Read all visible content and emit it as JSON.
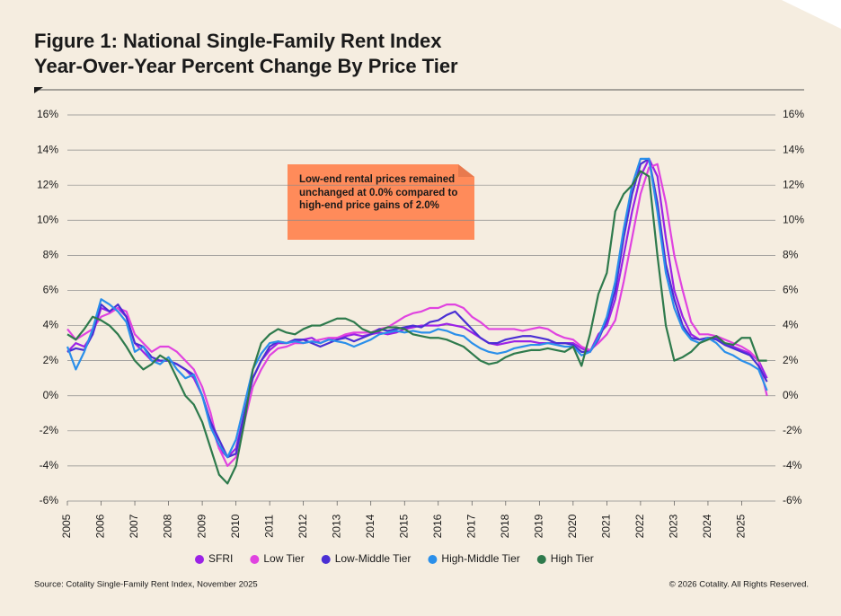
{
  "chart_data": {
    "type": "line",
    "title": "Figure 1: National Single-Family Rent Index",
    "subtitle": "Year-Over-Year Percent Change By Price Tier",
    "annotation": "Low-end rental prices remained unchanged at 0.0% compared to high-end price gains of 2.0%",
    "source": "Source: Cotality Single-Family Rent Index, November 2025",
    "copyright": "© 2026 Cotality. All Rights Reserved.",
    "xlim": [
      2005,
      2026
    ],
    "xticks": [
      2005,
      2006,
      2007,
      2008,
      2009,
      2010,
      2011,
      2012,
      2013,
      2014,
      2015,
      2016,
      2017,
      2018,
      2019,
      2020,
      2021,
      2022,
      2023,
      2024,
      2025
    ],
    "ylim": [
      -6,
      16
    ],
    "yticks": [
      {
        "value": -6,
        "label": "-6%"
      },
      {
        "value": -4,
        "label": "-4%"
      },
      {
        "value": -2,
        "label": "-2%"
      },
      {
        "value": 0,
        "label": "0%"
      },
      {
        "value": 2,
        "label": "2%"
      },
      {
        "value": 4,
        "label": "4%"
      },
      {
        "value": 6,
        "label": "6%"
      },
      {
        "value": 8,
        "label": "8%"
      },
      {
        "value": 10,
        "label": "10%"
      },
      {
        "value": 12,
        "label": "12%"
      },
      {
        "value": 14,
        "label": "14%"
      },
      {
        "value": 16,
        "label": "16%"
      }
    ],
    "y2lim": [
      -6,
      16
    ],
    "y2ticks": [
      {
        "value": -6,
        "label": "-6%"
      },
      {
        "value": -4,
        "label": "-4%"
      },
      {
        "value": -2,
        "label": "-2%"
      },
      {
        "value": 0,
        "label": "0%"
      },
      {
        "value": 2,
        "label": "2%"
      },
      {
        "value": 4,
        "label": "4%"
      },
      {
        "value": 6,
        "label": "6%"
      },
      {
        "value": 8,
        "label": "8%"
      },
      {
        "value": 10,
        "label": "10%"
      },
      {
        "value": 12,
        "label": "12%"
      },
      {
        "value": 14,
        "label": "14%"
      },
      {
        "value": 16,
        "label": "16%"
      }
    ],
    "grid": true,
    "x": [
      2005,
      2005.25,
      2005.5,
      2005.75,
      2006,
      2006.25,
      2006.5,
      2006.75,
      2007,
      2007.25,
      2007.5,
      2007.75,
      2008,
      2008.25,
      2008.5,
      2008.75,
      2009,
      2009.25,
      2009.5,
      2009.75,
      2010,
      2010.25,
      2010.5,
      2010.75,
      2011,
      2011.25,
      2011.5,
      2011.75,
      2012,
      2012.25,
      2012.5,
      2012.75,
      2013,
      2013.25,
      2013.5,
      2013.75,
      2014,
      2014.25,
      2014.5,
      2014.75,
      2015,
      2015.25,
      2015.5,
      2015.75,
      2016,
      2016.25,
      2016.5,
      2016.75,
      2017,
      2017.25,
      2017.5,
      2017.75,
      2018,
      2018.25,
      2018.5,
      2018.75,
      2019,
      2019.25,
      2019.5,
      2019.75,
      2020,
      2020.25,
      2020.5,
      2020.75,
      2021,
      2021.25,
      2021.5,
      2021.75,
      2022,
      2022.25,
      2022.5,
      2022.75,
      2023,
      2023.25,
      2023.5,
      2023.75,
      2024,
      2024.25,
      2024.5,
      2024.75,
      2025,
      2025.25,
      2025.5,
      2025.75
    ],
    "series": [
      {
        "name": "SFRI",
        "color": "#9b22e6",
        "values": [
          2.5,
          3.0,
          2.8,
          3.5,
          5.0,
          4.8,
          5.0,
          4.5,
          3.0,
          2.5,
          2.0,
          2.0,
          2.0,
          1.8,
          1.5,
          1.0,
          0.0,
          -1.5,
          -3.0,
          -3.5,
          -3.0,
          -1.0,
          1.0,
          2.0,
          2.6,
          3.0,
          3.0,
          3.1,
          3.2,
          3.3,
          3.0,
          3.2,
          3.3,
          3.4,
          3.5,
          3.4,
          3.5,
          3.6,
          3.5,
          3.6,
          3.8,
          3.9,
          4.0,
          4.0,
          4.0,
          4.1,
          4.0,
          3.9,
          3.6,
          3.3,
          3.0,
          2.9,
          3.0,
          3.1,
          3.1,
          3.1,
          3.0,
          3.0,
          3.0,
          3.0,
          3.0,
          2.7,
          2.5,
          3.5,
          4.0,
          5.5,
          8.0,
          10.5,
          12.5,
          13.5,
          12.5,
          9.0,
          6.0,
          4.5,
          3.5,
          3.2,
          3.3,
          3.3,
          3.0,
          2.8,
          2.6,
          2.4,
          2.0,
          1.0
        ]
      },
      {
        "name": "Low Tier",
        "color": "#e043e0",
        "values": [
          3.8,
          3.2,
          3.5,
          3.8,
          4.5,
          4.7,
          5.0,
          4.8,
          3.5,
          3.0,
          2.5,
          2.8,
          2.8,
          2.5,
          2.0,
          1.5,
          0.5,
          -1.0,
          -3.0,
          -4.0,
          -3.5,
          -1.5,
          0.5,
          1.5,
          2.3,
          2.7,
          2.8,
          3.0,
          3.0,
          3.1,
          3.2,
          3.3,
          3.3,
          3.5,
          3.6,
          3.6,
          3.6,
          3.8,
          3.9,
          4.2,
          4.5,
          4.7,
          4.8,
          5.0,
          5.0,
          5.2,
          5.2,
          5.0,
          4.5,
          4.2,
          3.8,
          3.8,
          3.8,
          3.8,
          3.7,
          3.8,
          3.9,
          3.8,
          3.5,
          3.3,
          3.2,
          2.8,
          2.6,
          3.0,
          3.5,
          4.3,
          6.5,
          9.0,
          11.5,
          13.0,
          13.2,
          11.0,
          8.0,
          6.0,
          4.2,
          3.5,
          3.5,
          3.4,
          3.2,
          3.0,
          2.8,
          2.5,
          2.0,
          0.0
        ]
      },
      {
        "name": "Low-Middle Tier",
        "color": "#4a2fd4",
        "values": [
          2.5,
          2.7,
          2.6,
          3.5,
          5.2,
          4.8,
          5.2,
          4.5,
          3.0,
          2.8,
          2.2,
          2.0,
          2.0,
          1.8,
          1.5,
          1.2,
          0.0,
          -1.5,
          -2.5,
          -3.5,
          -3.3,
          -1.0,
          1.0,
          2.0,
          2.8,
          3.1,
          3.0,
          3.2,
          3.2,
          3.0,
          2.8,
          3.0,
          3.2,
          3.3,
          3.1,
          3.3,
          3.5,
          3.8,
          3.7,
          3.8,
          3.9,
          4.0,
          3.9,
          4.2,
          4.3,
          4.6,
          4.8,
          4.3,
          3.8,
          3.3,
          3.0,
          3.0,
          3.2,
          3.3,
          3.4,
          3.4,
          3.3,
          3.2,
          3.0,
          3.0,
          2.9,
          2.5,
          2.5,
          3.2,
          4.3,
          6.0,
          9.0,
          11.5,
          13.2,
          13.5,
          11.0,
          7.5,
          5.5,
          4.0,
          3.3,
          3.2,
          3.3,
          3.2,
          2.9,
          2.7,
          2.5,
          2.3,
          1.7,
          0.8
        ]
      },
      {
        "name": "High-Middle Tier",
        "color": "#2a8fea",
        "values": [
          2.8,
          1.5,
          2.5,
          3.8,
          5.5,
          5.2,
          4.8,
          4.2,
          2.5,
          2.8,
          2.0,
          1.8,
          2.2,
          1.5,
          1.0,
          1.2,
          0.0,
          -1.8,
          -2.8,
          -3.5,
          -2.5,
          -0.5,
          1.5,
          2.4,
          3.0,
          3.1,
          3.0,
          3.1,
          3.0,
          3.1,
          3.0,
          3.2,
          3.1,
          3.0,
          2.8,
          3.0,
          3.2,
          3.5,
          3.6,
          3.7,
          3.6,
          3.7,
          3.6,
          3.6,
          3.8,
          3.7,
          3.5,
          3.4,
          3.0,
          2.7,
          2.5,
          2.4,
          2.5,
          2.7,
          2.8,
          2.9,
          2.9,
          3.0,
          2.9,
          2.8,
          2.8,
          2.3,
          2.5,
          3.3,
          4.5,
          6.5,
          9.5,
          12.0,
          13.5,
          13.5,
          10.5,
          7.0,
          5.0,
          3.8,
          3.2,
          3.0,
          3.3,
          3.0,
          2.5,
          2.3,
          2.0,
          1.8,
          1.5,
          0.3
        ]
      },
      {
        "name": "High Tier",
        "color": "#2e7a4c",
        "values": [
          3.5,
          3.2,
          3.8,
          4.5,
          4.3,
          4.0,
          3.5,
          2.8,
          2.0,
          1.5,
          1.8,
          2.3,
          2.0,
          1.0,
          0.0,
          -0.5,
          -1.5,
          -3.0,
          -4.5,
          -5.0,
          -4.0,
          -1.5,
          1.5,
          3.0,
          3.5,
          3.8,
          3.6,
          3.5,
          3.8,
          4.0,
          4.0,
          4.2,
          4.4,
          4.4,
          4.2,
          3.8,
          3.6,
          3.7,
          3.9,
          3.9,
          3.8,
          3.5,
          3.4,
          3.3,
          3.3,
          3.2,
          3.0,
          2.8,
          2.4,
          2.0,
          1.8,
          1.9,
          2.2,
          2.4,
          2.5,
          2.6,
          2.6,
          2.7,
          2.6,
          2.5,
          2.8,
          1.7,
          3.5,
          5.8,
          7.0,
          10.5,
          11.5,
          12.0,
          12.8,
          12.5,
          8.0,
          4.0,
          2.0,
          2.2,
          2.5,
          3.0,
          3.2,
          3.4,
          3.0,
          2.9,
          3.3,
          3.3,
          2.0,
          2.0
        ]
      }
    ]
  }
}
